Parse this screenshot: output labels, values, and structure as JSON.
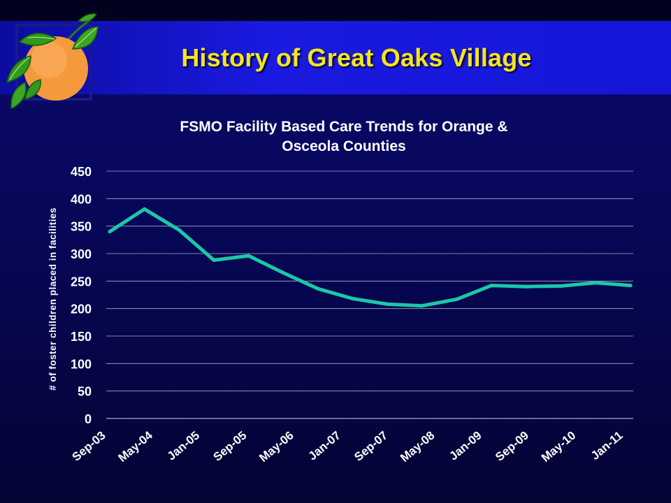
{
  "slide": {
    "title": "History of Great Oaks Village"
  },
  "logo": {
    "icon": "orange-fruit-icon"
  },
  "colors": {
    "title": "#f5e51b",
    "series_line": "#19c9a6",
    "gridline": "#aaaacc",
    "header_band": "#1a1ae0",
    "background": "#07075a"
  },
  "chart_data": {
    "type": "line",
    "title": "FSMO Facility Based Care Trends for Orange & Osceola Counties",
    "title_lines": [
      "FSMO Facility Based Care Trends for Orange &",
      "Osceola Counties"
    ],
    "xlabel": "",
    "ylabel": "# of foster children placed in facilities",
    "ylim": [
      0,
      450
    ],
    "yticks": [
      "0",
      "50",
      "100",
      "150",
      "200",
      "250",
      "300",
      "350",
      "400",
      "450"
    ],
    "xtick_labels": [
      "Sep-03",
      "May-04",
      "Jan-05",
      "Sep-05",
      "May-06",
      "Jan-07",
      "Sep-07",
      "May-08",
      "Jan-09",
      "Sep-09",
      "May-10",
      "Jan-11"
    ],
    "grid": true,
    "legend": "none",
    "series": [
      {
        "values": [
          340,
          381,
          343,
          288,
          296,
          265,
          236,
          218,
          208,
          205,
          217,
          242,
          240,
          241,
          247,
          242
        ]
      }
    ]
  }
}
